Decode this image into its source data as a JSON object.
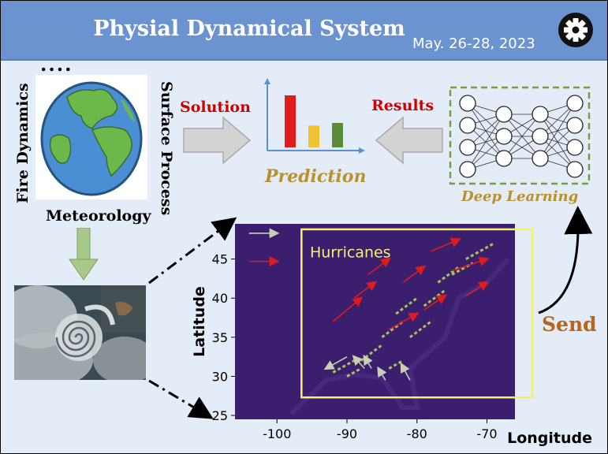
{
  "header": {
    "title": "Physial Dynamical System",
    "date": "May. 26-28, 2023",
    "settings_icon": "gear-icon"
  },
  "left": {
    "ellipsis": "....",
    "fire_label": "Fire Dynamics",
    "surface_label": "Surface Process",
    "meteorology_label": "Meteorology",
    "globe_icon": "globe-icon",
    "cyclone_image": "satellite-cyclone-image"
  },
  "flow": {
    "solution_label": "Solution",
    "results_label": "Results",
    "prediction_label": "Prediction",
    "deep_learning_label": "Deep Learning",
    "send_label": "Send"
  },
  "colors": {
    "header": "#6b93cf",
    "background": "#e3ecf7",
    "accent_red": "#cc0000",
    "accent_gold": "#b8922e",
    "send": "#b5651d",
    "box_yellow": "#f5f06a",
    "dl_border": "#7a9a45"
  },
  "chart_data": [
    {
      "type": "bar",
      "role": "prediction-icon",
      "categories": [
        "",
        "",
        ""
      ],
      "values": [
        1.0,
        0.42,
        0.47
      ],
      "colors": [
        "#e01b1b",
        "#f1c232",
        "#5b8c3a"
      ]
    },
    {
      "type": "heatmap",
      "xlabel": "Longitude",
      "ylabel": "Latitude",
      "xticks": [
        -100,
        -90,
        -80,
        -70
      ],
      "yticks": [
        25,
        30,
        35,
        40,
        45
      ],
      "xlim": [
        -106,
        -66
      ],
      "ylim": [
        24.5,
        49.5
      ],
      "box_label": "Hurricanes"
    }
  ]
}
